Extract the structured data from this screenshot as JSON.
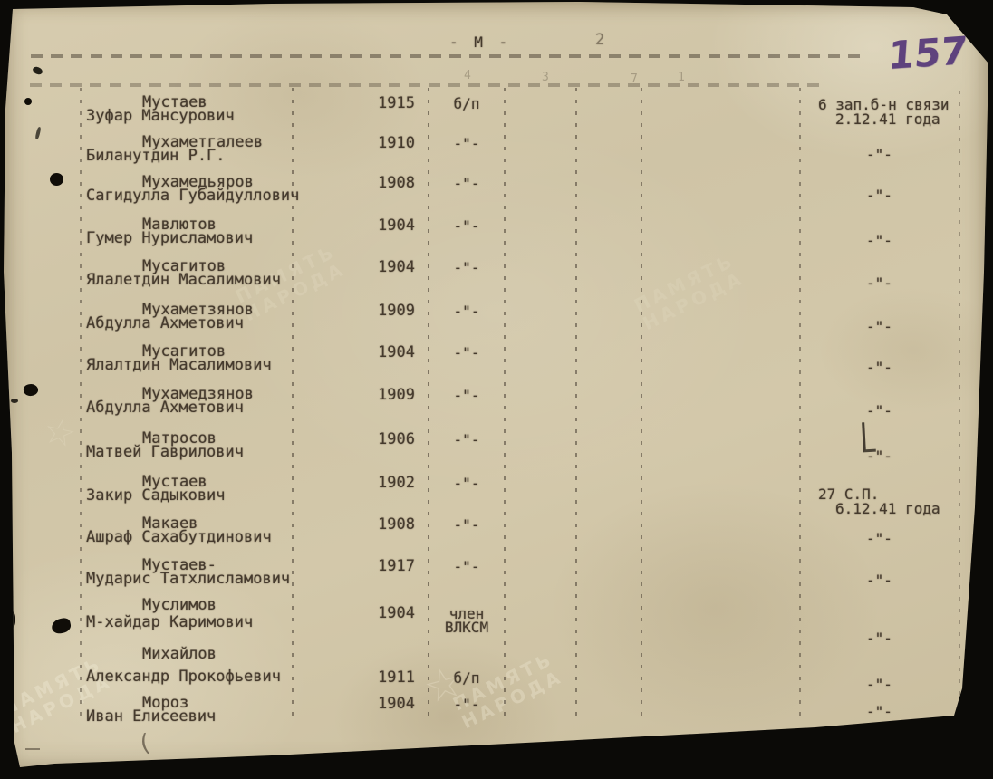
{
  "document": {
    "header": {
      "section_letter": "- М -",
      "faint_page_number": "2",
      "sheet_number_handwritten": "157"
    },
    "faint_column_marks": [
      "4",
      "3",
      "7",
      "1"
    ],
    "watermark": {
      "line1": "ПАМЯТЬ",
      "line2": "НАРОДА",
      "star": "☆"
    },
    "pen_marks": {
      "paren": "("
    },
    "table": {
      "rows": [
        {
          "surname": "Мустаев",
          "given_names": "Зуфар Мансурович",
          "birth_year": "1915",
          "party_line1": "б/п",
          "party_line2": "",
          "note_line1": "6 зап.б-н связи",
          "note_line2": "2.12.41 года"
        },
        {
          "surname": "Мухаметгалеев",
          "given_names": "Биланутдин Р.Г.",
          "birth_year": "1910",
          "party_line1": "-\"-",
          "party_line2": "",
          "note_line1": "-\"-",
          "note_line2": ""
        },
        {
          "surname": "Мухамедьяров",
          "given_names": "Сагидулла Губайдуллович",
          "birth_year": "1908",
          "party_line1": "-\"-",
          "party_line2": "",
          "note_line1": "-\"-",
          "note_line2": ""
        },
        {
          "surname": "Мавлютов",
          "given_names": "Гумер Нурисламович",
          "birth_year": "1904",
          "party_line1": "-\"-",
          "party_line2": "",
          "note_line1": "-\"-",
          "note_line2": ""
        },
        {
          "surname": "Мусагитов",
          "given_names": "Ялалетдин Масалимович",
          "birth_year": "1904",
          "party_line1": "-\"-",
          "party_line2": "",
          "note_line1": "-\"-",
          "note_line2": ""
        },
        {
          "surname": "Мухаметзянов",
          "given_names": "Абдулла Ахметович",
          "birth_year": "1909",
          "party_line1": "-\"-",
          "party_line2": "",
          "note_line1": "-\"-",
          "note_line2": ""
        },
        {
          "surname": "Мусагитов",
          "given_names": "Ялалтдин Масалимович",
          "birth_year": "1904",
          "party_line1": "-\"-",
          "party_line2": "",
          "note_line1": "-\"-",
          "note_line2": ""
        },
        {
          "surname": "Мухамедзянов",
          "given_names": "Абдулла Ахметович",
          "birth_year": "1909",
          "party_line1": "-\"-",
          "party_line2": "",
          "note_line1": "-\"-",
          "note_line2": ""
        },
        {
          "surname": "Матросов",
          "given_names": "Матвей Гаврилович",
          "birth_year": "1906",
          "party_line1": "-\"-",
          "party_line2": "",
          "note_line1": "-\"-",
          "note_line2": ""
        },
        {
          "surname": "Мустаев",
          "given_names": "Закир Садыкович",
          "birth_year": "1902",
          "party_line1": "-\"-",
          "party_line2": "",
          "note_line1": "27 С.П.",
          "note_line2": "6.12.41 года"
        },
        {
          "surname": "Макаев",
          "given_names": "Ашраф Сахабутдинович",
          "birth_year": "1908",
          "party_line1": "-\"-",
          "party_line2": "",
          "note_line1": "-\"-",
          "note_line2": ""
        },
        {
          "surname": "Мустаев-",
          "given_names": "Мударис Татхлисламович",
          "birth_year": "1917",
          "party_line1": "-\"-",
          "party_line2": "",
          "note_line1": "-\"-",
          "note_line2": ""
        },
        {
          "surname": "Муслимов",
          "given_names": "М-хайдар Каримович",
          "birth_year": "1904",
          "party_line1": "член",
          "party_line2": "ВЛКСМ",
          "note_line1": "-\"-",
          "note_line2": ""
        },
        {
          "surname": "Михайлов",
          "given_names": "Александр Прокофьевич",
          "birth_year": "1911",
          "party_line1": "б/п",
          "party_line2": "",
          "note_line1": "-\"-",
          "note_line2": ""
        },
        {
          "surname": "Мороз",
          "given_names": "Иван Елисеевич",
          "birth_year": "1904",
          "party_line1": "-\"-",
          "party_line2": "",
          "note_line1": "-\"-",
          "note_line2": ""
        }
      ]
    }
  },
  "colors": {
    "paper": "#d2c7a9",
    "ink": "#453a2d",
    "handwriting": "#4e2f76",
    "background": "#0b0a07"
  }
}
